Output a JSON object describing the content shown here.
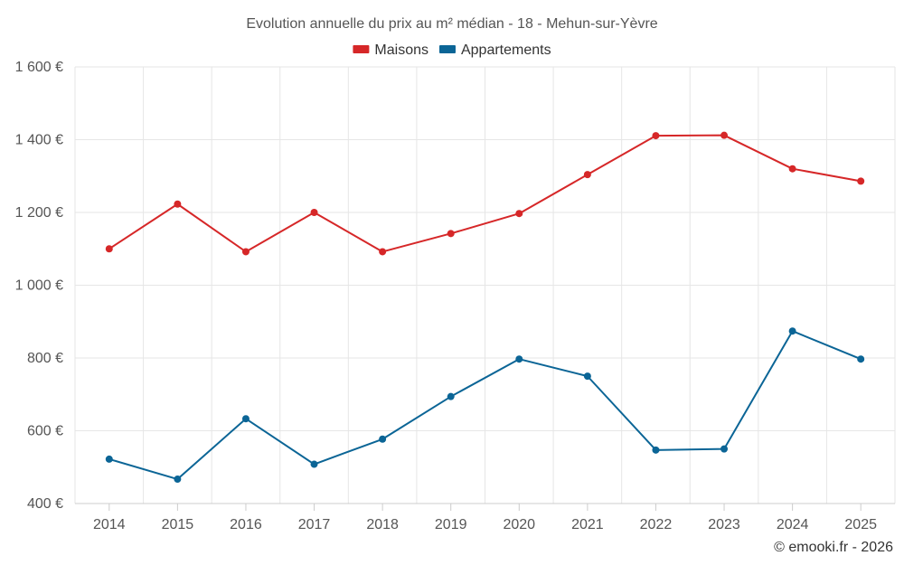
{
  "chart_data": {
    "type": "line",
    "title": "Evolution annuelle du prix au m² médian - 18 - Mehun-sur-Yèvre",
    "x": [
      "2014",
      "2015",
      "2016",
      "2017",
      "2018",
      "2019",
      "2020",
      "2021",
      "2022",
      "2023",
      "2024",
      "2025"
    ],
    "ylim": [
      400,
      1600
    ],
    "yticks": [
      400,
      600,
      800,
      1000,
      1200,
      1400,
      1600
    ],
    "ytick_labels": [
      "400 €",
      "600 €",
      "800 €",
      "1 000 €",
      "1 200 €",
      "1 400 €",
      "1 600 €"
    ],
    "grid": true,
    "legend_position": "top-center",
    "series": [
      {
        "name": "Maisons",
        "color": "#d62728",
        "values": [
          1100,
          1223,
          1092,
          1200,
          1092,
          1142,
          1197,
          1304,
          1411,
          1412,
          1320,
          1286
        ]
      },
      {
        "name": "Appartements",
        "color": "#0b6596",
        "values": [
          522,
          467,
          633,
          508,
          577,
          694,
          797,
          750,
          547,
          550,
          874,
          797
        ]
      }
    ]
  },
  "credit": "© emooki.fr - 2026"
}
